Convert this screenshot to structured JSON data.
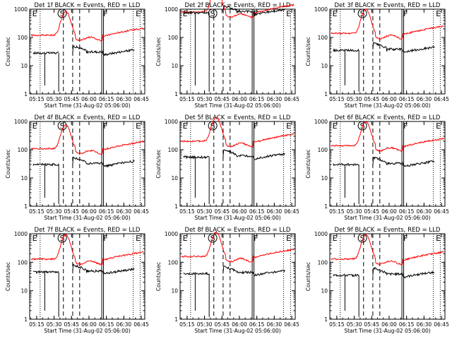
{
  "shared": {
    "x_ticks": [
      "05:15",
      "05:30",
      "05:45",
      "06:00",
      "06:15",
      "06:30",
      "06:45"
    ],
    "y_ticks": [
      "1",
      "10",
      "100",
      "1000"
    ],
    "ylabel": "Counts/sec",
    "xlabel": "Start Time (31-Aug-02 05:06:00)",
    "colors": {
      "events": "#000000",
      "lld": "#ff0000"
    }
  },
  "chart_data": [
    {
      "type": "line",
      "title": "Det 1f BLACK = Events, RED = LLD",
      "xlabel": "Start Time (31-Aug-02 05:06:00)",
      "ylabel": "Counts/sec",
      "ylim": [
        1,
        1000
      ],
      "y_scale": "log",
      "x_range": [
        "05:09",
        "06:48"
      ],
      "flags": [
        "E",
        "S",
        "F",
        "E"
      ],
      "lld_base": 120,
      "events_base": 28
    },
    {
      "type": "line",
      "title": "Det 2f BLACK = Events, RED = LLD",
      "xlabel": "Start Time (31-Aug-02 05:06:00)",
      "ylabel": "Counts/sec",
      "ylim": [
        1,
        1000
      ],
      "y_scale": "log",
      "x_range": [
        "05:09",
        "06:48"
      ],
      "flags": [
        "E",
        "S",
        "F",
        "E"
      ],
      "lld_base": 800,
      "events_base": 750
    },
    {
      "type": "line",
      "title": "Det 3f BLACK = Events, RED = LLD",
      "xlabel": "Start Time (31-Aug-02 05:06:00)",
      "ylabel": "Counts/sec",
      "ylim": [
        1,
        1000
      ],
      "y_scale": "log",
      "x_range": [
        "05:09",
        "06:48"
      ],
      "flags": [
        "E",
        "S",
        "F",
        "E"
      ],
      "lld_base": 140,
      "events_base": 35
    },
    {
      "type": "line",
      "title": "Det 4f BLACK = Events, RED = LLD",
      "xlabel": "Start Time (31-Aug-02 05:06:00)",
      "ylabel": "Counts/sec",
      "ylim": [
        1,
        1000
      ],
      "y_scale": "log",
      "x_range": [
        "05:09",
        "06:48"
      ],
      "flags": [
        "E",
        "S",
        "F",
        "E"
      ],
      "lld_base": 110,
      "events_base": 30
    },
    {
      "type": "line",
      "title": "Det 5f BLACK = Events, RED = LLD",
      "xlabel": "Start Time (31-Aug-02 05:06:00)",
      "ylabel": "Counts/sec",
      "ylim": [
        1,
        1000
      ],
      "y_scale": "log",
      "x_range": [
        "05:09",
        "06:48"
      ],
      "flags": [
        "E",
        "S",
        "F",
        "E"
      ],
      "lld_base": 200,
      "events_base": 55
    },
    {
      "type": "line",
      "title": "Det 6f BLACK = Events, RED = LLD",
      "xlabel": "Start Time (31-Aug-02 05:06:00)",
      "ylabel": "Counts/sec",
      "ylim": [
        1,
        1000
      ],
      "y_scale": "log",
      "x_range": [
        "05:09",
        "06:48"
      ],
      "flags": [
        "E",
        "S",
        "F",
        "E"
      ],
      "lld_base": 140,
      "events_base": 30
    },
    {
      "type": "line",
      "title": "Det 7f BLACK = Events, RED = LLD",
      "xlabel": "Start Time (31-Aug-02 05:06:00)",
      "ylabel": "Counts/sec",
      "ylim": [
        1,
        1000
      ],
      "y_scale": "log",
      "x_range": [
        "05:09",
        "06:48"
      ],
      "flags": [
        "E",
        "S",
        "F",
        "E"
      ],
      "lld_base": 130,
      "events_base": 45
    },
    {
      "type": "line",
      "title": "Det 8f BLACK = Events, RED = LLD",
      "xlabel": "Start Time (31-Aug-02 05:06:00)",
      "ylabel": "Counts/sec",
      "ylim": [
        1,
        1000
      ],
      "y_scale": "log",
      "x_range": [
        "05:09",
        "06:48"
      ],
      "flags": [
        "E",
        "S",
        "F",
        "E"
      ],
      "lld_base": 160,
      "events_base": 40
    },
    {
      "type": "line",
      "title": "Det 9f BLACK = Events, RED = LLD",
      "xlabel": "Start Time (31-Aug-02 05:06:00)",
      "ylabel": "Counts/sec",
      "ylim": [
        1,
        1000
      ],
      "y_scale": "log",
      "x_range": [
        "05:09",
        "06:48"
      ],
      "flags": [
        "E",
        "S",
        "F",
        "E"
      ],
      "lld_base": 130,
      "events_base": 35
    }
  ]
}
